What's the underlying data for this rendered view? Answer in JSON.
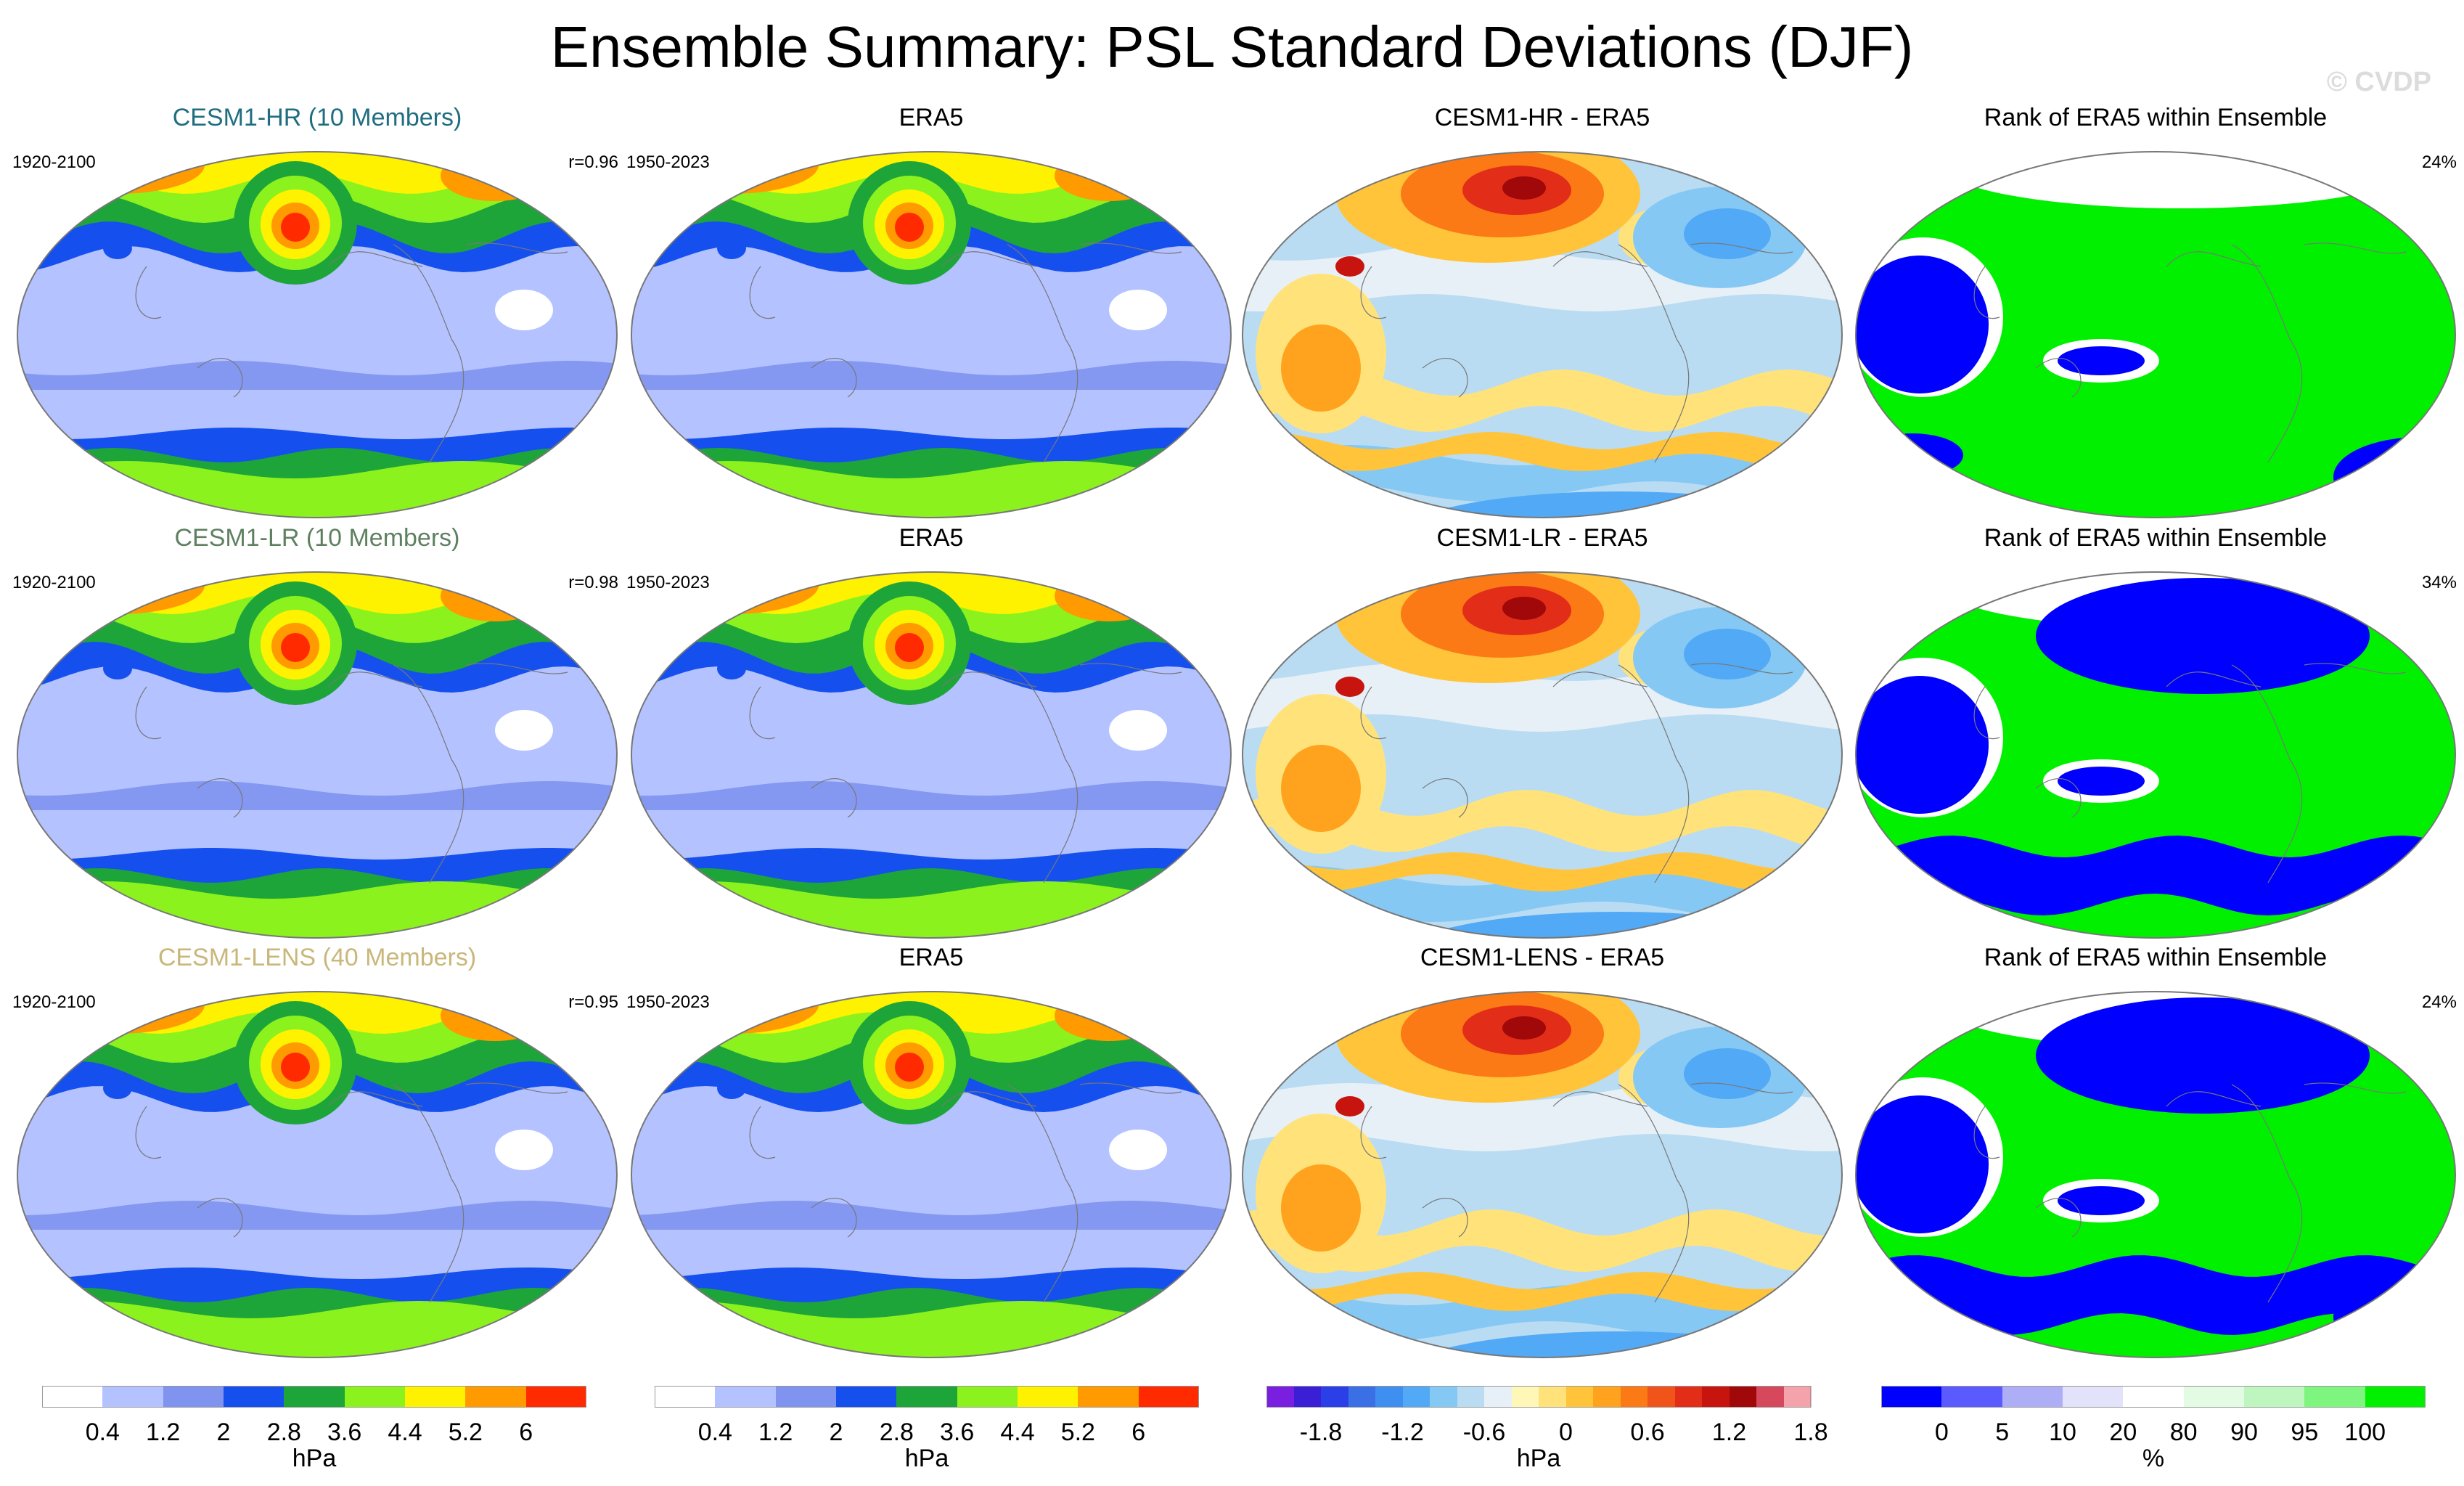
{
  "title": "Ensemble Summary: PSL Standard Deviations (DJF)",
  "watermark": "© CVDP",
  "chart_data": {
    "type": "heatmap",
    "projection": "global map (Robinson-like)",
    "rows": [
      {
        "panels": [
          {
            "kind": "model",
            "title": "CESM1-HR (10 Members)",
            "title_color": "#1f6e80",
            "period": "1920-2100",
            "stat": "r=0.96"
          },
          {
            "kind": "obs",
            "title": "ERA5",
            "period": "1950-2023"
          },
          {
            "kind": "diff",
            "title": "CESM1-HR - ERA5"
          },
          {
            "kind": "rank",
            "title": "Rank of ERA5 within Ensemble",
            "stat": "24%"
          }
        ]
      },
      {
        "panels": [
          {
            "kind": "model",
            "title": "CESM1-LR (10 Members)",
            "title_color": "#5f8060",
            "period": "1920-2100",
            "stat": "r=0.98"
          },
          {
            "kind": "obs",
            "title": "ERA5",
            "period": "1950-2023"
          },
          {
            "kind": "diff",
            "title": "CESM1-LR - ERA5"
          },
          {
            "kind": "rank",
            "title": "Rank of ERA5 within Ensemble",
            "stat": "34%"
          }
        ]
      },
      {
        "panels": [
          {
            "kind": "model",
            "title": "CESM1-LENS (40 Members)",
            "title_color": "#c9b77a",
            "period": "1920-2100",
            "stat": "r=0.95"
          },
          {
            "kind": "obs",
            "title": "ERA5",
            "period": "1950-2023"
          },
          {
            "kind": "diff",
            "title": "CESM1-LENS - ERA5"
          },
          {
            "kind": "rank",
            "title": "Rank of ERA5 within Ensemble",
            "stat": "24%"
          }
        ]
      }
    ],
    "colorbars": [
      {
        "unit": "hPa",
        "ticks": [
          "0.4",
          "1.2",
          "2",
          "2.8",
          "3.6",
          "4.4",
          "5.2",
          "6"
        ],
        "colors": [
          "#ffffff",
          "#b4c2ff",
          "#7f93ef",
          "#1550ef",
          "#1ea53a",
          "#8cf21e",
          "#fff200",
          "#ff9a00",
          "#ff2a00"
        ]
      },
      {
        "unit": "hPa",
        "ticks": [
          "0.4",
          "1.2",
          "2",
          "2.8",
          "3.6",
          "4.4",
          "5.2",
          "6"
        ],
        "colors": [
          "#ffffff",
          "#b4c2ff",
          "#7f93ef",
          "#1550ef",
          "#1ea53a",
          "#8cf21e",
          "#fff200",
          "#ff9a00",
          "#ff2a00"
        ]
      },
      {
        "unit": "hPa",
        "ticks": [
          "-1.8",
          "-1.2",
          "-0.6",
          "0",
          "0.6",
          "1.2",
          "1.8"
        ],
        "colors": [
          "#7a1ee0",
          "#3a1fd6",
          "#2a3fe8",
          "#3a6fe6",
          "#3f8ff0",
          "#52a9f5",
          "#86c8f4",
          "#b9dcf3",
          "#e7f0f6",
          "#fff7b8",
          "#ffe37a",
          "#ffc43a",
          "#ffa21d",
          "#fb7a16",
          "#f0541a",
          "#e22d18",
          "#c8140e",
          "#a0080a",
          "#d6485c",
          "#f4a3ad"
        ]
      },
      {
        "unit": "%",
        "ticks": [
          "0",
          "5",
          "10",
          "20",
          "80",
          "90",
          "95",
          "100"
        ],
        "colors": [
          "#0000ff",
          "#5a5aff",
          "#aeaef7",
          "#e2e2fa",
          "#ffffff",
          "#e3fbe3",
          "#bff5bf",
          "#7ef57e",
          "#00f000"
        ]
      }
    ]
  }
}
